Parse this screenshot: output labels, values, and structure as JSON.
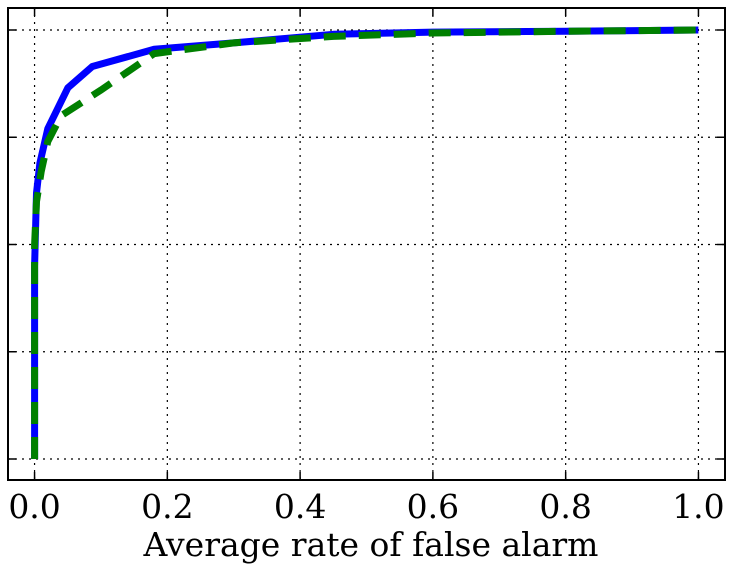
{
  "chart_data": {
    "type": "line",
    "title": "",
    "xlabel": "Average rate of false alarm",
    "ylabel": "",
    "xlim": [
      -0.04,
      1.04
    ],
    "ylim": [
      0.0,
      1.0
    ],
    "x_ticks": [
      0.0,
      0.2,
      0.4,
      0.6,
      0.8,
      1.0
    ],
    "x_tick_labels": [
      "0.0",
      "0.2",
      "0.4",
      "0.6",
      "0.8",
      "1.0"
    ],
    "y_ticks": [
      0.0,
      0.25,
      0.5,
      0.75,
      1.0
    ],
    "y_tick_labels": [
      "",
      "",
      "",
      "",
      ""
    ],
    "grid": true,
    "legend": "none",
    "series": [
      {
        "color": "#0000ff",
        "style": "solid",
        "x": [
          0.0,
          0.0,
          0.003,
          0.008,
          0.02,
          0.05,
          0.087,
          0.18,
          0.3,
          0.45,
          0.6,
          0.8,
          1.0
        ],
        "y": [
          0.0,
          0.45,
          0.62,
          0.69,
          0.77,
          0.865,
          0.915,
          0.955,
          0.97,
          0.99,
          0.995,
          0.997,
          1.0
        ]
      },
      {
        "color": "#008000",
        "style": "dashed",
        "x": [
          0.0,
          0.0,
          0.003,
          0.01,
          0.02,
          0.04,
          0.1,
          0.18,
          0.3,
          0.45,
          0.6,
          0.8,
          1.0
        ],
        "y": [
          0.0,
          0.5,
          0.6,
          0.67,
          0.74,
          0.8,
          0.86,
          0.945,
          0.97,
          0.985,
          0.993,
          0.997,
          1.0
        ]
      }
    ]
  }
}
